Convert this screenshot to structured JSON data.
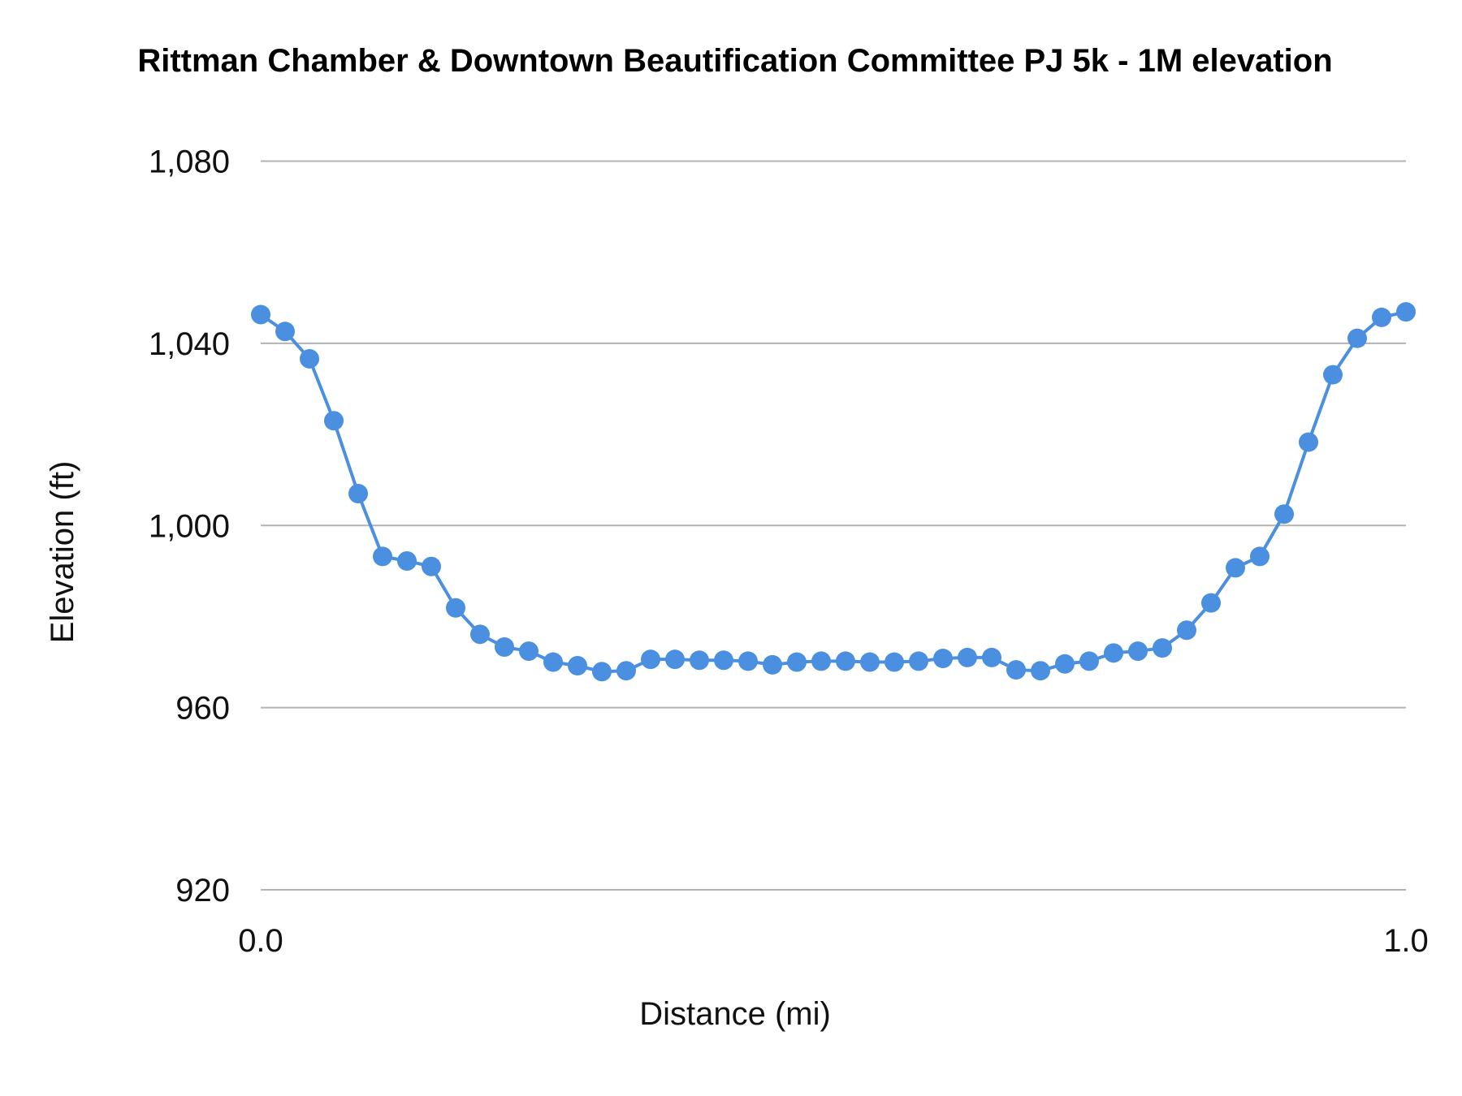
{
  "chart_data": {
    "type": "line",
    "title": "Rittman Chamber & Downtown Beautification Committee PJ 5k - 1M elevation",
    "xlabel": "Distance (mi)",
    "ylabel": "Elevation (ft)",
    "xlim": [
      0,
      1
    ],
    "ylim": [
      920,
      1080
    ],
    "x_ticks": [
      "0.0",
      "1.0"
    ],
    "y_ticks": [
      {
        "value": 920,
        "label": "920"
      },
      {
        "value": 960,
        "label": "960"
      },
      {
        "value": 1000,
        "label": "1,000"
      },
      {
        "value": 1040,
        "label": "1,040"
      },
      {
        "value": 1080,
        "label": "1,080"
      }
    ],
    "grid": true,
    "legend": "none",
    "series_color": "#4a8fe0",
    "series": [
      {
        "values": [
          1046.3,
          1042.6,
          1036.6,
          1023.0,
          1007.0,
          993.2,
          992.2,
          991.0,
          981.9,
          976.1,
          973.3,
          972.4,
          970.0,
          969.2,
          967.9,
          968.1,
          970.6,
          970.6,
          970.4,
          970.4,
          970.2,
          969.4,
          970.0,
          970.2,
          970.2,
          970.0,
          970.0,
          970.2,
          970.8,
          971.0,
          971.0,
          968.3,
          968.1,
          969.6,
          970.2,
          972.0,
          972.4,
          973.1,
          977.0,
          983.0,
          990.7,
          993.2,
          1002.5,
          1018.3,
          1033.1,
          1041.1,
          1045.7,
          1046.9
        ]
      }
    ]
  }
}
